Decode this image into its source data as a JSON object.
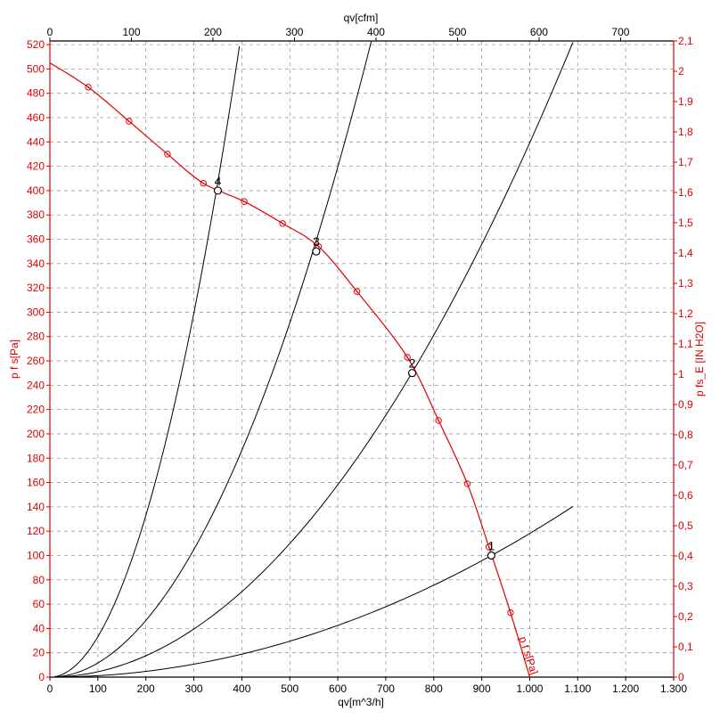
{
  "chart_data": {
    "type": "line",
    "title": "",
    "colors": {
      "fan": "#e00000",
      "system": "#000000",
      "grid": "#9a9a9a",
      "axis_black": "#000000"
    },
    "axes": {
      "bottom": {
        "label": "qv[m^3/h]",
        "range": [
          0,
          1300
        ],
        "ticks": [
          0,
          100,
          200,
          300,
          400,
          500,
          600,
          700,
          800,
          900,
          1000,
          1100,
          1200,
          1300
        ],
        "tick_labels": [
          "0",
          "100",
          "200",
          "300",
          "400",
          "500",
          "600",
          "700",
          "800",
          "900",
          "1.000",
          "1.100",
          "1.200",
          "1.300"
        ]
      },
      "top": {
        "label": "qv[cfm]",
        "range": [
          0,
          765.1
        ],
        "ticks": [
          0,
          100,
          200,
          300,
          400,
          500,
          600,
          700
        ],
        "tick_labels": [
          "0",
          "100",
          "200",
          "300",
          "400",
          "500",
          "600",
          "700"
        ]
      },
      "left": {
        "label": "p f s[Pa]",
        "range": [
          0,
          523
        ],
        "ticks": [
          0,
          20,
          40,
          60,
          80,
          100,
          120,
          140,
          160,
          180,
          200,
          220,
          240,
          260,
          280,
          300,
          320,
          340,
          360,
          380,
          400,
          420,
          440,
          460,
          480,
          500,
          520
        ],
        "tick_labels": [
          "0",
          "20",
          "40",
          "60",
          "80",
          "100",
          "120",
          "140",
          "160",
          "180",
          "200",
          "220",
          "240",
          "260",
          "280",
          "300",
          "320",
          "340",
          "360",
          "380",
          "400",
          "420",
          "440",
          "460",
          "480",
          "500",
          "520"
        ]
      },
      "right": {
        "label": "p fs_E [IN H2O]",
        "range": [
          0,
          2.1
        ],
        "ticks": [
          0,
          0.1,
          0.2,
          0.3,
          0.4,
          0.5,
          0.6,
          0.7,
          0.8,
          0.9,
          1.0,
          1.1,
          1.2,
          1.3,
          1.4,
          1.5,
          1.6,
          1.7,
          1.8,
          1.9,
          2.0,
          2.1
        ],
        "tick_labels": [
          "0",
          "0,1",
          "0,2",
          "0,3",
          "0,4",
          "0,5",
          "0,6",
          "0,7",
          "0,8",
          "0,9",
          "1",
          "1,1",
          "1,2",
          "1,3",
          "1,4",
          "1,5",
          "1,6",
          "1,7",
          "1,8",
          "1,9",
          "2",
          "2,1"
        ]
      }
    },
    "grid": true,
    "series": [
      {
        "kind": "fan-curve",
        "name": "p f s[Pa]",
        "color": "#e00000",
        "x": [
          0,
          80,
          165,
          245,
          320,
          405,
          485,
          560,
          640,
          745,
          810,
          870,
          915,
          960,
          1000
        ],
        "y": [
          505,
          485,
          457,
          430,
          406,
          391,
          373,
          354,
          317,
          263,
          211,
          159,
          107,
          53,
          0
        ]
      }
    ],
    "system_curves": [
      {
        "label": "1",
        "k": 0.0001181,
        "x_max": 1090
      },
      {
        "label": "2",
        "k": 0.0004393,
        "x_max": 1090
      },
      {
        "label": "3",
        "k": 0.001165,
        "x_max": 670
      },
      {
        "label": "4",
        "k": 0.003324,
        "x_max": 395
      }
    ],
    "operating_points": [
      {
        "label": "1",
        "x": 920,
        "y": 100
      },
      {
        "label": "2",
        "x": 755,
        "y": 250
      },
      {
        "label": "3",
        "x": 555,
        "y": 350
      },
      {
        "label": "4",
        "x": 350,
        "y": 400
      }
    ]
  }
}
